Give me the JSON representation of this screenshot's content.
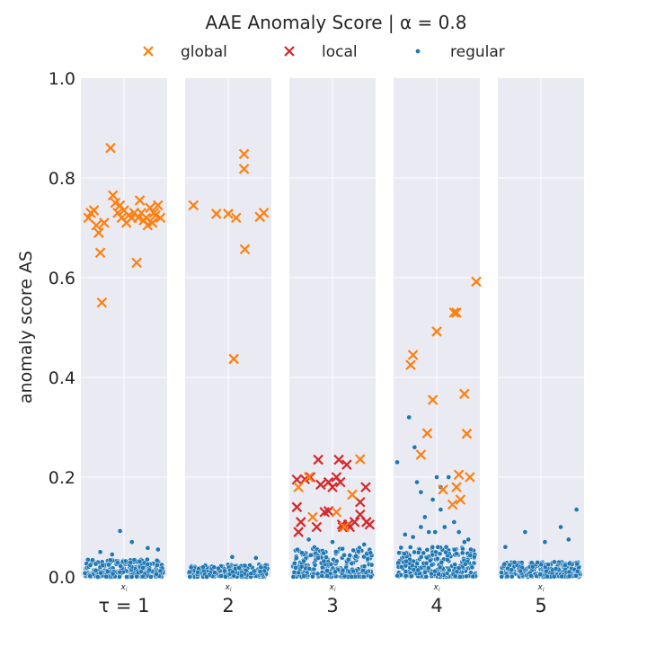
{
  "chart_data": {
    "type": "scatter",
    "title": "AAE Anomaly Score | α = 0.8",
    "ylabel": "anomaly score AS",
    "ylim": [
      0,
      1
    ],
    "yticks": [
      "0.0",
      "0.2",
      "0.4",
      "0.6",
      "0.8",
      "1.0"
    ],
    "facet_label": "x_i",
    "legend": {
      "placement": "top-center",
      "entries": [
        {
          "name": "global",
          "marker": "x",
          "color": "#ff7f0e"
        },
        {
          "name": "local",
          "marker": "x",
          "color": "#d62728"
        },
        {
          "name": "regular",
          "marker": "o",
          "color": "#1f77b4"
        }
      ]
    },
    "panels": [
      {
        "tau_label": "τ = 1",
        "regular_band": {
          "max": 0.035,
          "outliers": [
            [
              0.45,
              0.092
            ],
            [
              0.6,
              0.07
            ],
            [
              0.2,
              0.05
            ],
            [
              0.8,
              0.058
            ],
            [
              0.93,
              0.055
            ],
            [
              0.35,
              0.045
            ]
          ]
        },
        "global": [
          [
            0.05,
            0.72
          ],
          [
            0.08,
            0.73
          ],
          [
            0.12,
            0.735
          ],
          [
            0.15,
            0.705
          ],
          [
            0.18,
            0.69
          ],
          [
            0.2,
            0.65
          ],
          [
            0.22,
            0.55
          ],
          [
            0.25,
            0.71
          ],
          [
            0.33,
            0.86
          ],
          [
            0.36,
            0.765
          ],
          [
            0.39,
            0.75
          ],
          [
            0.42,
            0.73
          ],
          [
            0.45,
            0.745
          ],
          [
            0.47,
            0.72
          ],
          [
            0.5,
            0.735
          ],
          [
            0.53,
            0.71
          ],
          [
            0.56,
            0.725
          ],
          [
            0.6,
            0.72
          ],
          [
            0.63,
            0.73
          ],
          [
            0.66,
            0.63
          ],
          [
            0.7,
            0.755
          ],
          [
            0.72,
            0.73
          ],
          [
            0.75,
            0.715
          ],
          [
            0.78,
            0.72
          ],
          [
            0.8,
            0.705
          ],
          [
            0.83,
            0.74
          ],
          [
            0.86,
            0.71
          ],
          [
            0.9,
            0.725
          ],
          [
            0.93,
            0.745
          ],
          [
            0.96,
            0.72
          ],
          [
            0.88,
            0.73
          ],
          [
            0.68,
            0.72
          ]
        ],
        "local": []
      },
      {
        "tau_label": "2",
        "regular_band": {
          "max": 0.025,
          "outliers": [
            [
              0.55,
              0.04
            ],
            [
              0.85,
              0.038
            ]
          ]
        },
        "global": [
          [
            0.06,
            0.745
          ],
          [
            0.35,
            0.728
          ],
          [
            0.5,
            0.728
          ],
          [
            0.6,
            0.72
          ],
          [
            0.57,
            0.437
          ],
          [
            0.7,
            0.848
          ],
          [
            0.7,
            0.818
          ],
          [
            0.71,
            0.657
          ],
          [
            0.9,
            0.722
          ],
          [
            0.95,
            0.73
          ]
        ],
        "local": []
      },
      {
        "tau_label": "3",
        "regular_band": {
          "max": 0.06,
          "outliers": [
            [
              0.2,
              0.075
            ],
            [
              0.5,
              0.07
            ],
            [
              0.9,
              0.065
            ]
          ]
        },
        "global": [
          [
            0.07,
            0.18
          ],
          [
            0.2,
            0.2
          ],
          [
            0.25,
            0.12
          ],
          [
            0.55,
            0.13
          ],
          [
            0.75,
            0.165
          ],
          [
            0.85,
            0.236
          ],
          [
            0.65,
            0.1
          ]
        ],
        "local": [
          [
            0.05,
            0.195
          ],
          [
            0.05,
            0.14
          ],
          [
            0.07,
            0.09
          ],
          [
            0.1,
            0.11
          ],
          [
            0.15,
            0.196
          ],
          [
            0.22,
            0.2
          ],
          [
            0.3,
            0.1
          ],
          [
            0.32,
            0.235
          ],
          [
            0.35,
            0.185
          ],
          [
            0.4,
            0.13
          ],
          [
            0.45,
            0.132
          ],
          [
            0.45,
            0.19
          ],
          [
            0.5,
            0.18
          ],
          [
            0.55,
            0.2
          ],
          [
            0.58,
            0.235
          ],
          [
            0.6,
            0.19
          ],
          [
            0.62,
            0.105
          ],
          [
            0.63,
            0.1
          ],
          [
            0.68,
            0.225
          ],
          [
            0.7,
            0.105
          ],
          [
            0.72,
            0.1
          ],
          [
            0.78,
            0.11
          ],
          [
            0.85,
            0.125
          ],
          [
            0.85,
            0.15
          ],
          [
            0.92,
            0.18
          ],
          [
            0.93,
            0.11
          ],
          [
            0.97,
            0.105
          ]
        ]
      },
      {
        "tau_label": "4",
        "regular_band": {
          "max": 0.06,
          "outliers": [
            [
              0.0,
              0.23
            ],
            [
              0.15,
              0.32
            ],
            [
              0.22,
              0.26
            ],
            [
              0.25,
              0.19
            ],
            [
              0.3,
              0.17
            ],
            [
              0.35,
              0.12
            ],
            [
              0.45,
              0.155
            ],
            [
              0.5,
              0.2
            ],
            [
              0.55,
              0.18
            ],
            [
              0.55,
              0.135
            ],
            [
              0.6,
              0.1
            ],
            [
              0.65,
              0.2
            ],
            [
              0.72,
              0.11
            ],
            [
              0.78,
              0.09
            ],
            [
              0.4,
              0.09
            ],
            [
              0.2,
              0.08
            ],
            [
              0.85,
              0.07
            ],
            [
              0.9,
              0.075
            ],
            [
              0.3,
              0.1
            ],
            [
              0.1,
              0.085
            ],
            [
              0.62,
              0.06
            ],
            [
              0.48,
              0.09
            ]
          ]
        },
        "global": [
          [
            0.17,
            0.425
          ],
          [
            0.2,
            0.445
          ],
          [
            0.3,
            0.245
          ],
          [
            0.38,
            0.288
          ],
          [
            0.45,
            0.355
          ],
          [
            0.5,
            0.492
          ],
          [
            0.58,
            0.175
          ],
          [
            0.7,
            0.145
          ],
          [
            0.72,
            0.53
          ],
          [
            0.75,
            0.53
          ],
          [
            0.75,
            0.18
          ],
          [
            0.78,
            0.205
          ],
          [
            0.8,
            0.155
          ],
          [
            0.85,
            0.367
          ],
          [
            0.88,
            0.287
          ],
          [
            0.92,
            0.2
          ],
          [
            1.0,
            0.592
          ]
        ],
        "local": []
      },
      {
        "tau_label": "5",
        "regular_band": {
          "max": 0.03,
          "outliers": [
            [
              0.3,
              0.09
            ],
            [
              0.75,
              0.1
            ],
            [
              0.95,
              0.135
            ],
            [
              0.05,
              0.06
            ],
            [
              0.55,
              0.07
            ],
            [
              0.85,
              0.075
            ]
          ]
        },
        "global": [],
        "local": []
      }
    ]
  }
}
